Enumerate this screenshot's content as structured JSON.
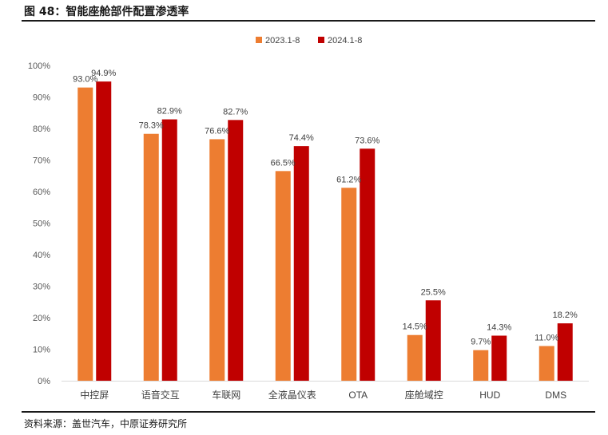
{
  "figure": {
    "title": "图 48：智能座舱部件配置渗透率",
    "source": "资料来源：盖世汽车，中原证券研究所"
  },
  "chart_data": {
    "type": "bar",
    "categories": [
      "中控屏",
      "语音交互",
      "车联网",
      "全液晶仪表",
      "OTA",
      "座舱域控",
      "HUD",
      "DMS"
    ],
    "series": [
      {
        "name": "2023.1-8",
        "color": "#ED7D31",
        "values": [
          93.0,
          78.3,
          76.6,
          66.5,
          61.2,
          14.5,
          9.7,
          11.0
        ]
      },
      {
        "name": "2024.1-8",
        "color": "#C00000",
        "values": [
          94.9,
          82.9,
          82.7,
          74.4,
          73.6,
          25.5,
          14.3,
          18.2
        ]
      }
    ],
    "data_labels": [
      [
        "93.0%",
        "78.3%",
        "76.6%",
        "66.5%",
        "61.2%",
        "14.5%",
        "9.7%",
        "11.0%"
      ],
      [
        "94.9%",
        "82.9%",
        "82.7%",
        "74.4%",
        "73.6%",
        "25.5%",
        "14.3%",
        "18.2%"
      ]
    ],
    "y_ticks": [
      "0%",
      "10%",
      "20%",
      "30%",
      "40%",
      "50%",
      "60%",
      "70%",
      "80%",
      "90%",
      "100%"
    ],
    "ylim": [
      0,
      100
    ],
    "legend_position": "top-center",
    "grid": false
  }
}
